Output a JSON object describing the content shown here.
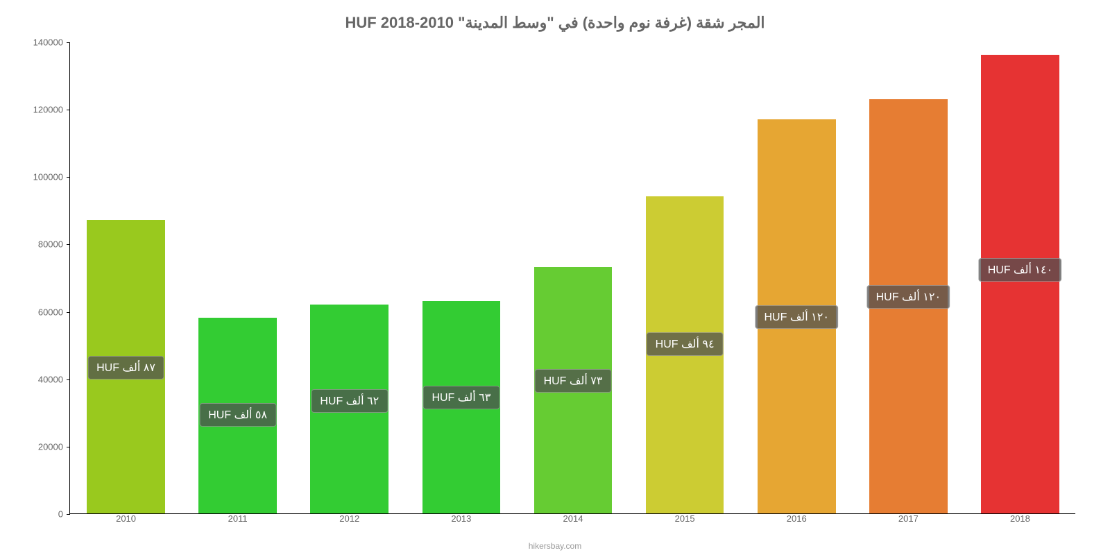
{
  "chart": {
    "type": "bar",
    "title": "المجر شقة (غرفة نوم واحدة) في \"وسط المدينة\" HUF 2018-2010",
    "title_fontsize": 22,
    "title_color": "#666666",
    "caption": "hikersbay.com",
    "caption_color": "#999999",
    "background_color": "#ffffff",
    "ylim": [
      0,
      140000
    ],
    "ytick_step": 20000,
    "yticks": [
      0,
      20000,
      40000,
      60000,
      80000,
      100000,
      120000,
      140000
    ],
    "axis_color": "#000000",
    "tick_label_color": "#666666",
    "tick_fontsize": 13,
    "bar_width_ratio": 0.7,
    "label_bg": "rgba(80, 80, 80, 0.75)",
    "label_color": "#ffffff",
    "label_fontsize": 16,
    "categories": [
      "2010",
      "2011",
      "2012",
      "2013",
      "2014",
      "2015",
      "2016",
      "2017",
      "2018"
    ],
    "values": [
      87000,
      58000,
      62000,
      63000,
      73000,
      94000,
      117000,
      123000,
      136000
    ],
    "bar_colors": [
      "#99c91e",
      "#33cc33",
      "#33cc33",
      "#33cc33",
      "#66cc33",
      "#cccc33",
      "#e6a633",
      "#e67d33",
      "#e63333"
    ],
    "bar_labels": [
      "٨٧ ألف HUF",
      "٥٨ ألف HUF",
      "٦٢ ألف HUF",
      "٦٣ ألف HUF",
      "٧٣ ألف HUF",
      "٩٤ ألف HUF",
      "١٢٠ ألف HUF",
      "١٢٠ ألف HUF",
      "١٤٠ ألف HUF"
    ],
    "label_y_offset": [
      -40000,
      -25000,
      -25000,
      -25000,
      -30000,
      -40000,
      -55000,
      -55000,
      -60000
    ]
  }
}
